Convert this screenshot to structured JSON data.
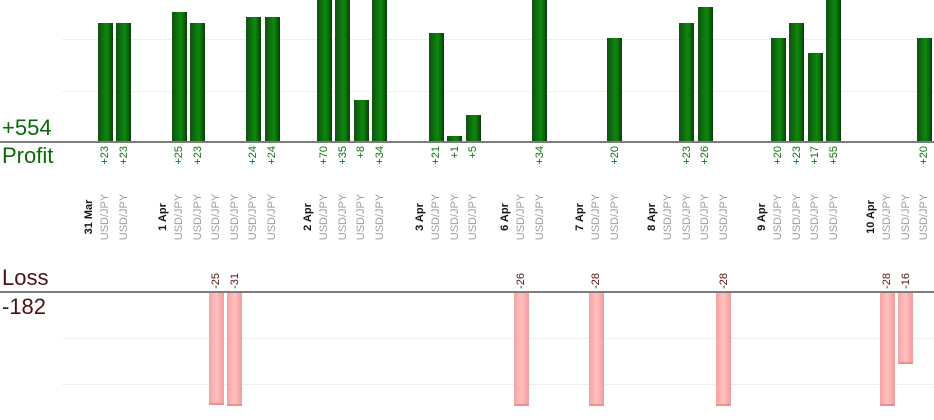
{
  "chart_data": {
    "type": "bar",
    "description": "Daily trade profit/loss bar chart, profits (green) above upper baseline, losses (pink) below lower baseline",
    "profit_section": {
      "total_label": "+554",
      "axis_label": "Profit",
      "total_value": 554
    },
    "loss_section": {
      "axis_label": "Loss",
      "total_label": "-182",
      "total_value": -182
    },
    "symbol": "USD/JPY",
    "grid": true,
    "groups": [
      {
        "date": "31 Mar",
        "trades": [
          {
            "symbol": "USD/JPY",
            "value": 23,
            "label": "+23"
          },
          {
            "symbol": "USD/JPY",
            "value": 23,
            "label": "+23"
          }
        ]
      },
      {
        "date": "1 Apr",
        "trades": [
          {
            "symbol": "USD/JPY",
            "value": 25,
            "label": "+25"
          },
          {
            "symbol": "USD/JPY",
            "value": 23,
            "label": "+23"
          },
          {
            "symbol": "USD/JPY",
            "value": -25,
            "label": "-25"
          },
          {
            "symbol": "USD/JPY",
            "value": -31,
            "label": "-31"
          },
          {
            "symbol": "USD/JPY",
            "value": 24,
            "label": "+24"
          },
          {
            "symbol": "USD/JPY",
            "value": 24,
            "label": "+24"
          }
        ]
      },
      {
        "date": "2 Apr",
        "trades": [
          {
            "symbol": "USD/JPY",
            "value": 70,
            "label": "+70"
          },
          {
            "symbol": "USD/JPY",
            "value": 35,
            "label": "+35"
          },
          {
            "symbol": "USD/JPY",
            "value": 8,
            "label": "+8"
          },
          {
            "symbol": "USD/JPY",
            "value": 34,
            "label": "+34"
          }
        ]
      },
      {
        "date": "3 Apr",
        "trades": [
          {
            "symbol": "USD/JPY",
            "value": 21,
            "label": "+21"
          },
          {
            "symbol": "USD/JPY",
            "value": 1,
            "label": "+1"
          },
          {
            "symbol": "USD/JPY",
            "value": 5,
            "label": "+5"
          }
        ]
      },
      {
        "date": "6 Apr",
        "trades": [
          {
            "symbol": "USD/JPY",
            "value": -26,
            "label": "-26"
          },
          {
            "symbol": "USD/JPY",
            "value": 34,
            "label": "+34"
          }
        ]
      },
      {
        "date": "7 Apr",
        "trades": [
          {
            "symbol": "USD/JPY",
            "value": -28,
            "label": "-28"
          },
          {
            "symbol": "USD/JPY",
            "value": 20,
            "label": "+20"
          }
        ]
      },
      {
        "date": "8 Apr",
        "trades": [
          {
            "symbol": "USD/JPY",
            "value": 0,
            "label": ""
          },
          {
            "symbol": "USD/JPY",
            "value": 23,
            "label": "+23"
          },
          {
            "symbol": "USD/JPY",
            "value": 26,
            "label": "+26"
          },
          {
            "symbol": "USD/JPY",
            "value": -28,
            "label": "-28"
          }
        ]
      },
      {
        "date": "9 Apr",
        "trades": [
          {
            "symbol": "USD/JPY",
            "value": 20,
            "label": "+20"
          },
          {
            "symbol": "USD/JPY",
            "value": 23,
            "label": "+23"
          },
          {
            "symbol": "USD/JPY",
            "value": 17,
            "label": "+17"
          },
          {
            "symbol": "USD/JPY",
            "value": 55,
            "label": "+55"
          }
        ]
      },
      {
        "date": "10 Apr",
        "trades": [
          {
            "symbol": "USD/JPY",
            "value": -28,
            "label": "-28"
          },
          {
            "symbol": "USD/JPY",
            "value": -16,
            "label": "-16"
          },
          {
            "symbol": "USD/JPY",
            "value": 20,
            "label": "+20"
          }
        ]
      }
    ],
    "colors": {
      "profit_text": "#0a6a0a",
      "profit_bar_dark": "#0f500f",
      "profit_bar_light": "#0d8a0d",
      "loss_text": "#4d1111",
      "loss_bar_light": "#ffc0c0",
      "loss_bar_dark": "#f5a3a3",
      "axis_line": "#7d7d7d",
      "gridline": "#efefef",
      "date_label": "#141414",
      "symbol_label": "#9e9e9e"
    }
  }
}
